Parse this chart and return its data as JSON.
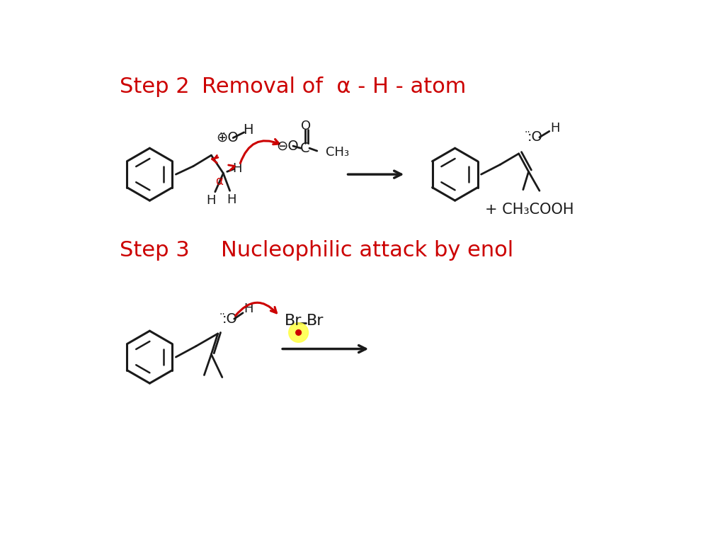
{
  "bg_color": "#ffffff",
  "red_color": "#cc0000",
  "black_color": "#1a1a1a",
  "yellow_color": "#ffff44",
  "step2_label": "Step 2",
  "step2_title": "Removal of  α - H - atom",
  "step3_label": "Step 3",
  "step3_title": "Nucleophilic attack by enol",
  "plus_ch3cooh": "+ CH₃COOH"
}
